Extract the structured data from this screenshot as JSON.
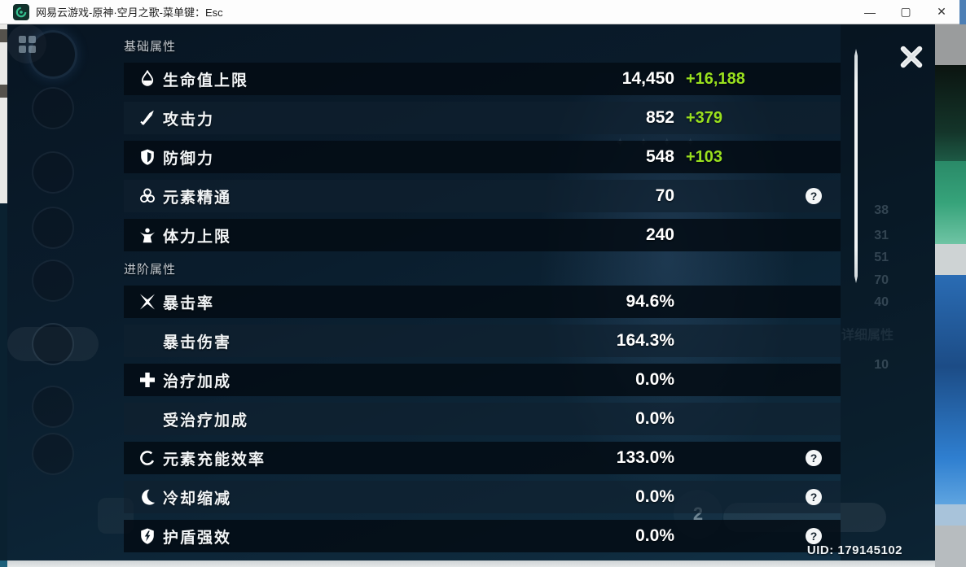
{
  "window": {
    "title": "网易云游戏-原神·空月之歌-菜单键：Esc",
    "minimize_label": "—",
    "maximize_label": "▢",
    "close_label": "✕"
  },
  "panel": {
    "sections": [
      {
        "title": "基础属性",
        "rows": [
          {
            "icon": "hp-icon",
            "label": "生命值上限",
            "value": "14,450",
            "bonus": "+16,188",
            "help": false
          },
          {
            "icon": "atk-icon",
            "label": "攻击力",
            "value": "852",
            "bonus": "+379",
            "help": false
          },
          {
            "icon": "def-icon",
            "label": "防御力",
            "value": "548",
            "bonus": "+103",
            "help": false
          },
          {
            "icon": "em-icon",
            "label": "元素精通",
            "value": "70",
            "bonus": "",
            "help": true
          },
          {
            "icon": "stamina-icon",
            "label": "体力上限",
            "value": "240",
            "bonus": "",
            "help": false
          }
        ]
      },
      {
        "title": "进阶属性",
        "rows": [
          {
            "icon": "crit-rate-icon",
            "label": "暴击率",
            "value": "94.6%",
            "bonus": "",
            "help": false
          },
          {
            "icon": "",
            "label": "暴击伤害",
            "value": "164.3%",
            "bonus": "",
            "help": false
          },
          {
            "icon": "healing-icon",
            "label": "治疗加成",
            "value": "0.0%",
            "bonus": "",
            "help": false
          },
          {
            "icon": "",
            "label": "受治疗加成",
            "value": "0.0%",
            "bonus": "",
            "help": false
          },
          {
            "icon": "energy-icon",
            "label": "元素充能效率",
            "value": "133.0%",
            "bonus": "",
            "help": true
          },
          {
            "icon": "cooldown-icon",
            "label": "冷却缩减",
            "value": "0.0%",
            "bonus": "",
            "help": true
          },
          {
            "icon": "shield-strength-icon",
            "label": "护盾强效",
            "value": "0.0%",
            "bonus": "",
            "help": true
          }
        ]
      }
    ],
    "uid": "UID: 179145102"
  },
  "background": {
    "faint_stars": "✦  ✦  ✦  ✦",
    "faint_detail_label": "详细属性",
    "faint_swap_number": "2",
    "faint_values": [
      "38",
      "31",
      "51",
      "70",
      "40",
      "10"
    ]
  },
  "colors": {
    "bonus_green": "#99e01e",
    "titlebar_bg": "#fdfdfd",
    "game_bg_top": "#081522",
    "game_bg_bottom": "#123349"
  }
}
